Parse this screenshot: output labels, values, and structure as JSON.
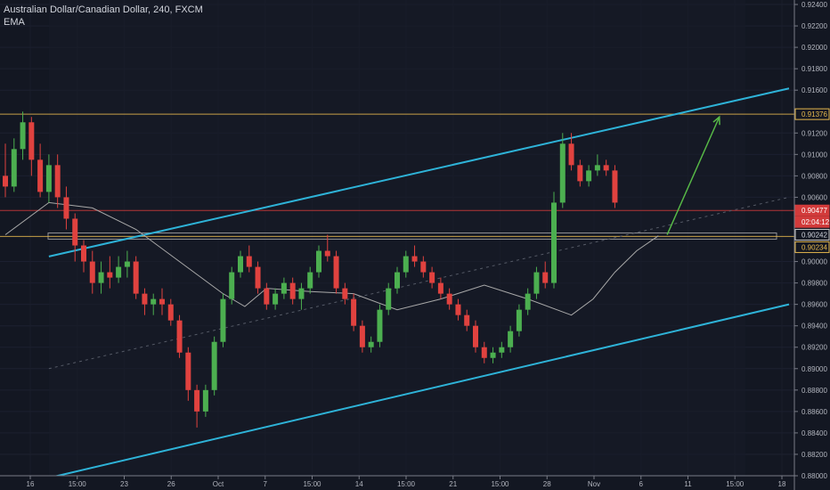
{
  "window": {
    "instrument": "Australian Dollar/Canadian Dollar, 240, FXCM",
    "indicator": "EMA"
  },
  "colors": {
    "background": "#131722",
    "up": "#4caf50",
    "down": "#e0423f",
    "channel": "#2eb3d8",
    "level": "#e6b84e",
    "arrow": "#57b947",
    "ema": "#a8a8a8",
    "resistance": "#d23b3b"
  },
  "chart_data": {
    "type": "candlestick",
    "x_tick_labels": [
      "16",
      "15:00",
      "23",
      "26",
      "Oct",
      "7",
      "15:00",
      "14",
      "15:00",
      "21",
      "15:00",
      "28",
      "Nov",
      "6",
      "11",
      "15:00",
      "18"
    ],
    "y_tick_labels": [
      "0.92400",
      "0.92200",
      "0.92000",
      "0.91800",
      "0.91600",
      "0.91200",
      "0.91000",
      "0.90800",
      "0.90600",
      "0.90000",
      "0.89800",
      "0.89600",
      "0.89400",
      "0.89200",
      "0.89000",
      "0.88800",
      "0.88600",
      "0.88400",
      "0.88200",
      "0.88000"
    ],
    "ylim": [
      0.88,
      0.925
    ],
    "price_labels": [
      {
        "value": "0.91376",
        "style": "level"
      },
      {
        "value": "0.90477",
        "style": "last"
      },
      {
        "value": "02:04:12",
        "style": "timer"
      },
      {
        "value": "0.90242",
        "style": "box"
      },
      {
        "value": "0.90234",
        "style": "level"
      }
    ],
    "levels": [
      0.91376,
      0.90477,
      0.90234
    ],
    "support_zone": [
      0.90234,
      0.90242
    ],
    "channel_upper": [
      [
        1,
        0.90047
      ],
      [
        18,
        0.91616
      ]
    ],
    "channel_lower": [
      [
        1,
        0.8798
      ],
      [
        18,
        0.896
      ]
    ],
    "channel_mid": [
      [
        1,
        0.89
      ],
      [
        18,
        0.906
      ]
    ],
    "projection_arrow": [
      [
        15.2,
        0.9025
      ],
      [
        16.4,
        0.9135
      ]
    ],
    "ema_path": [
      [
        0,
        0.9025
      ],
      [
        1,
        0.9055
      ],
      [
        2,
        0.905
      ],
      [
        3,
        0.903
      ],
      [
        4,
        0.9
      ],
      [
        5,
        0.897
      ],
      [
        5.5,
        0.8958
      ],
      [
        6,
        0.8975
      ],
      [
        7,
        0.8972
      ],
      [
        8,
        0.897
      ],
      [
        9,
        0.8955
      ],
      [
        10,
        0.8965
      ],
      [
        11,
        0.8978
      ],
      [
        12,
        0.8965
      ],
      [
        13,
        0.895
      ],
      [
        13.5,
        0.8965
      ],
      [
        14,
        0.899
      ],
      [
        14.5,
        0.901
      ],
      [
        15,
        0.9024
      ]
    ],
    "candles": [
      [
        0.0,
        0.908,
        0.911,
        0.906,
        0.907
      ],
      [
        0.2,
        0.907,
        0.9115,
        0.9065,
        0.9105
      ],
      [
        0.4,
        0.9105,
        0.914,
        0.9095,
        0.913
      ],
      [
        0.6,
        0.913,
        0.9135,
        0.908,
        0.9095
      ],
      [
        0.8,
        0.9095,
        0.911,
        0.906,
        0.9065
      ],
      [
        1.0,
        0.9065,
        0.91,
        0.9055,
        0.909
      ],
      [
        1.2,
        0.909,
        0.91,
        0.905,
        0.906
      ],
      [
        1.4,
        0.906,
        0.907,
        0.903,
        0.904
      ],
      [
        1.6,
        0.904,
        0.9045,
        0.9,
        0.9015
      ],
      [
        1.8,
        0.9015,
        0.902,
        0.899,
        0.9
      ],
      [
        2.0,
        0.9,
        0.901,
        0.897,
        0.898
      ],
      [
        2.2,
        0.898,
        0.9,
        0.897,
        0.899
      ],
      [
        2.4,
        0.899,
        0.9005,
        0.8975,
        0.8985
      ],
      [
        2.6,
        0.8985,
        0.9005,
        0.898,
        0.8995
      ],
      [
        2.8,
        0.8995,
        0.901,
        0.8985,
        0.9
      ],
      [
        3.0,
        0.9,
        0.9005,
        0.8965,
        0.897
      ],
      [
        3.2,
        0.897,
        0.8975,
        0.895,
        0.896
      ],
      [
        3.4,
        0.896,
        0.897,
        0.895,
        0.8965
      ],
      [
        3.6,
        0.8965,
        0.8975,
        0.895,
        0.896
      ],
      [
        3.8,
        0.896,
        0.8965,
        0.894,
        0.8945
      ],
      [
        4.0,
        0.8945,
        0.895,
        0.891,
        0.8915
      ],
      [
        4.2,
        0.8915,
        0.892,
        0.887,
        0.888
      ],
      [
        4.4,
        0.888,
        0.8885,
        0.8845,
        0.886
      ],
      [
        4.6,
        0.886,
        0.8885,
        0.8855,
        0.888
      ],
      [
        4.8,
        0.888,
        0.893,
        0.8875,
        0.8925
      ],
      [
        5.0,
        0.8925,
        0.897,
        0.892,
        0.8965
      ],
      [
        5.2,
        0.8965,
        0.8995,
        0.896,
        0.899
      ],
      [
        5.4,
        0.899,
        0.901,
        0.8985,
        0.9005
      ],
      [
        5.6,
        0.9005,
        0.9015,
        0.899,
        0.8995
      ],
      [
        5.8,
        0.8995,
        0.9,
        0.897,
        0.8975
      ],
      [
        6.0,
        0.8975,
        0.898,
        0.8955,
        0.896
      ],
      [
        6.2,
        0.896,
        0.8975,
        0.8955,
        0.897
      ],
      [
        6.4,
        0.897,
        0.8985,
        0.8965,
        0.898
      ],
      [
        6.6,
        0.898,
        0.8985,
        0.896,
        0.8965
      ],
      [
        6.8,
        0.8965,
        0.898,
        0.8955,
        0.8975
      ],
      [
        7.0,
        0.8975,
        0.8995,
        0.897,
        0.899
      ],
      [
        7.2,
        0.899,
        0.9015,
        0.8985,
        0.901
      ],
      [
        7.4,
        0.901,
        0.9025,
        0.9,
        0.9005
      ],
      [
        7.6,
        0.9005,
        0.901,
        0.897,
        0.8975
      ],
      [
        7.8,
        0.8975,
        0.898,
        0.896,
        0.8965
      ],
      [
        8.0,
        0.8965,
        0.897,
        0.8935,
        0.894
      ],
      [
        8.2,
        0.894,
        0.8945,
        0.8915,
        0.892
      ],
      [
        8.4,
        0.892,
        0.893,
        0.8915,
        0.8925
      ],
      [
        8.6,
        0.8925,
        0.896,
        0.892,
        0.8955
      ],
      [
        8.8,
        0.8955,
        0.898,
        0.895,
        0.8975
      ],
      [
        9.0,
        0.8975,
        0.8995,
        0.897,
        0.899
      ],
      [
        9.2,
        0.899,
        0.901,
        0.8985,
        0.9005
      ],
      [
        9.4,
        0.9005,
        0.9015,
        0.8995,
        0.9
      ],
      [
        9.6,
        0.9,
        0.9005,
        0.8985,
        0.899
      ],
      [
        9.8,
        0.899,
        0.8995,
        0.8975,
        0.898
      ],
      [
        10.0,
        0.898,
        0.8985,
        0.8965,
        0.897
      ],
      [
        10.2,
        0.897,
        0.8975,
        0.8955,
        0.896
      ],
      [
        10.4,
        0.896,
        0.8965,
        0.8945,
        0.895
      ],
      [
        10.6,
        0.895,
        0.8955,
        0.8935,
        0.894
      ],
      [
        10.8,
        0.894,
        0.8945,
        0.8915,
        0.892
      ],
      [
        11.0,
        0.892,
        0.8925,
        0.8905,
        0.891
      ],
      [
        11.2,
        0.891,
        0.892,
        0.8905,
        0.8915
      ],
      [
        11.4,
        0.8915,
        0.8925,
        0.891,
        0.892
      ],
      [
        11.6,
        0.892,
        0.894,
        0.8915,
        0.8935
      ],
      [
        11.8,
        0.8935,
        0.896,
        0.893,
        0.8955
      ],
      [
        12.0,
        0.8955,
        0.8975,
        0.895,
        0.897
      ],
      [
        12.2,
        0.897,
        0.8995,
        0.8965,
        0.899
      ],
      [
        12.4,
        0.899,
        0.9,
        0.8975,
        0.898
      ],
      [
        12.6,
        0.898,
        0.9065,
        0.8975,
        0.9055
      ],
      [
        12.8,
        0.9055,
        0.912,
        0.905,
        0.911
      ],
      [
        13.0,
        0.911,
        0.912,
        0.9085,
        0.909
      ],
      [
        13.2,
        0.909,
        0.9095,
        0.907,
        0.9075
      ],
      [
        13.4,
        0.9075,
        0.909,
        0.907,
        0.9085
      ],
      [
        13.6,
        0.9085,
        0.91,
        0.908,
        0.909
      ],
      [
        13.8,
        0.909,
        0.9095,
        0.908,
        0.9085
      ],
      [
        14.0,
        0.9085,
        0.909,
        0.905,
        0.9055
      ]
    ]
  }
}
